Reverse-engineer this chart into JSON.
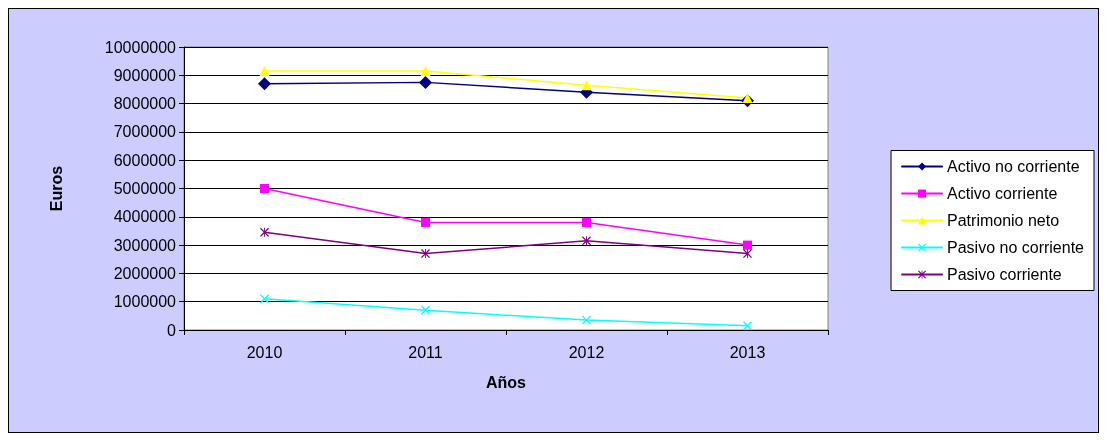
{
  "chart_data": {
    "type": "line",
    "xlabel": "Años",
    "ylabel": "Euros",
    "categories": [
      "2010",
      "2011",
      "2012",
      "2013"
    ],
    "series": [
      {
        "name": "Activo no corriente",
        "color": "#000080",
        "marker": "diamond",
        "values": [
          8700000,
          8750000,
          8400000,
          8100000
        ]
      },
      {
        "name": "Activo corriente",
        "color": "#ff00ff",
        "marker": "square",
        "values": [
          5000000,
          3800000,
          3800000,
          3000000
        ]
      },
      {
        "name": "Patrimonio neto",
        "color": "#ffff00",
        "marker": "triangle",
        "values": [
          9150000,
          9150000,
          8650000,
          8200000
        ]
      },
      {
        "name": "Pasivo no corriente",
        "color": "#00ffff",
        "marker": "cross",
        "values": [
          1100000,
          700000,
          350000,
          150000
        ]
      },
      {
        "name": "Pasivo corriente",
        "color": "#800080",
        "marker": "star",
        "values": [
          3450000,
          2700000,
          3150000,
          2700000
        ]
      }
    ],
    "ylim": [
      0,
      10000000
    ],
    "yticks": [
      0,
      1000000,
      2000000,
      3000000,
      4000000,
      5000000,
      6000000,
      7000000,
      8000000,
      9000000,
      10000000
    ],
    "grid": "y",
    "legend": "right",
    "line_style": "solid"
  }
}
